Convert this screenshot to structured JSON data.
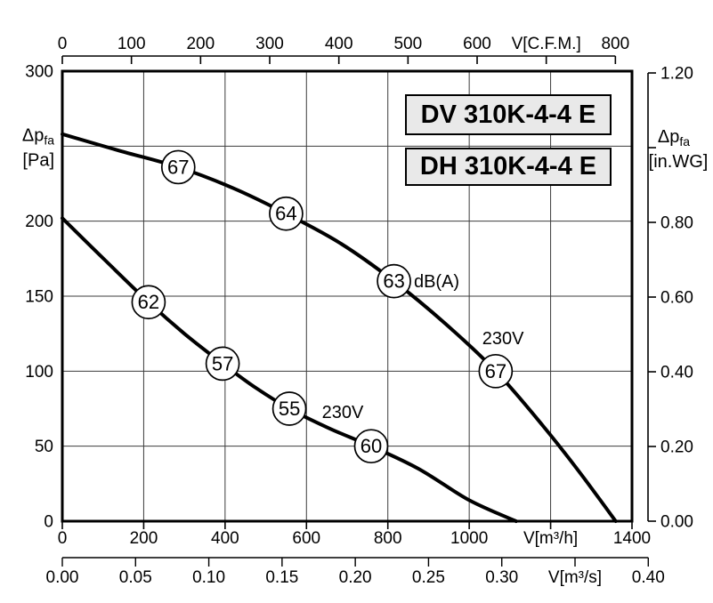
{
  "chart_data": {
    "type": "line",
    "model_labels": [
      "DV 310K-4-4 E",
      "DH 310K-4-4 E"
    ],
    "axes": {
      "bottom_primary": {
        "label": "V[m³/h]",
        "min": 0,
        "max": 1400,
        "step": 200,
        "label_at": 1200,
        "decimals": 0,
        "to_primary": 1
      },
      "bottom_secondary": {
        "label": "V[m³/s]",
        "min": 0,
        "max": 0.4,
        "step": 0.05,
        "label_at": 0.35,
        "decimals": 2,
        "to_primary": 3600
      },
      "top": {
        "label": "V[C.F.M.]",
        "min": 0,
        "max": 800,
        "step": 100,
        "label_at": 700,
        "decimals": 0,
        "to_primary": 1.699
      },
      "left": {
        "label_main": "Δp",
        "label_sub": "fa",
        "label_unit": "[Pa]",
        "min": 0,
        "max": 300,
        "step": 50,
        "label_at": 250,
        "decimals": 0
      },
      "right": {
        "label_main": "Δp",
        "label_sub": "fa",
        "label_unit": "[in.WG]",
        "min": 0,
        "max": 1.2,
        "step": 0.2,
        "label_at": 1.0,
        "decimals": 2,
        "to_left": 249
      }
    },
    "grid": {
      "x_step": 200,
      "y_step": 50,
      "on": true
    },
    "series": [
      {
        "id": "upper",
        "voltage": "230V",
        "points": [
          [
            0,
            258
          ],
          [
            140,
            247
          ],
          [
            285,
            236
          ],
          [
            420,
            222
          ],
          [
            550,
            205
          ],
          [
            685,
            185
          ],
          [
            815,
            160
          ],
          [
            940,
            132
          ],
          [
            1065,
            100
          ],
          [
            1180,
            64
          ],
          [
            1270,
            33
          ],
          [
            1360,
            0
          ]
        ],
        "markers": [
          {
            "db": "67",
            "v": 285,
            "pa": 236
          },
          {
            "db": "64",
            "v": 550,
            "pa": 205
          },
          {
            "db": "63",
            "v": 815,
            "pa": 160
          },
          {
            "db": "67",
            "v": 1065,
            "pa": 100
          }
        ]
      },
      {
        "id": "lower",
        "voltage": "230V",
        "points": [
          [
            0,
            202
          ],
          [
            105,
            174
          ],
          [
            212,
            146
          ],
          [
            300,
            125
          ],
          [
            394,
            105
          ],
          [
            475,
            89
          ],
          [
            558,
            75
          ],
          [
            655,
            62
          ],
          [
            759,
            50
          ],
          [
            875,
            35
          ],
          [
            1000,
            14
          ],
          [
            1115,
            0
          ]
        ],
        "markers": [
          {
            "db": "62",
            "v": 212,
            "pa": 146
          },
          {
            "db": "57",
            "v": 394,
            "pa": 105
          },
          {
            "db": "55",
            "v": 558,
            "pa": 75
          },
          {
            "db": "60",
            "v": 759,
            "pa": 50
          }
        ]
      }
    ],
    "annotations": [
      {
        "text": "dB(A)",
        "v": 864,
        "pa": 160,
        "anchor": "start"
      },
      {
        "text": "230V",
        "v": 1083,
        "pa": 122,
        "anchor": "middle"
      },
      {
        "text": "230V",
        "v": 689,
        "pa": 73,
        "anchor": "middle"
      }
    ],
    "colors": {
      "curve": "#000000",
      "grid": "#3c3c3c",
      "frame": "#000000",
      "box_bg": "#e9e9e9",
      "text": "#000000",
      "background": "#ffffff"
    }
  }
}
